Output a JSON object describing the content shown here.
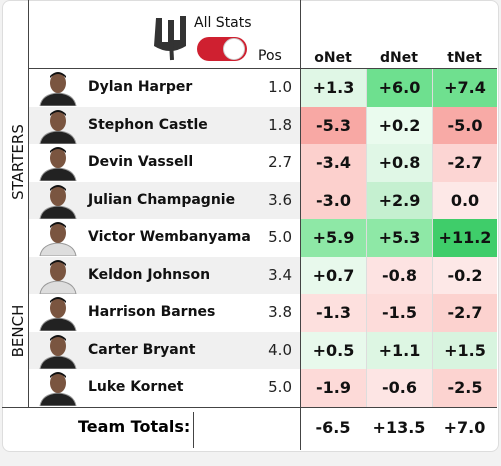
{
  "header": {
    "toggle_label": "All Stats",
    "pos": "Pos",
    "columns": [
      "oNet",
      "dNet",
      "tNet"
    ]
  },
  "groups": [
    {
      "label": "STARTERS",
      "rows": [
        {
          "name": "Dylan Harper",
          "pos": "1.0",
          "cells": [
            "+1.3",
            "+6.0",
            "+7.4"
          ],
          "colors": [
            "#e0f7e6",
            "#6ee08f",
            "#6fe08f"
          ]
        },
        {
          "name": "Stephon Castle",
          "pos": "1.8",
          "cells": [
            "-5.3",
            "+0.2",
            "-5.0"
          ],
          "colors": [
            "#f8a8a4",
            "#eafbee",
            "#f8aaa6"
          ]
        },
        {
          "name": "Devin Vassell",
          "pos": "2.7",
          "cells": [
            "-3.4",
            "+0.8",
            "-2.7"
          ],
          "colors": [
            "#fcd0cd",
            "#e0f7e6",
            "#fcd5d3"
          ]
        },
        {
          "name": "Julian Champagnie",
          "pos": "3.6",
          "cells": [
            "-3.0",
            "+2.9",
            "0.0"
          ],
          "colors": [
            "#fcd0cd",
            "#c5f0d0",
            "#fde8e7"
          ]
        },
        {
          "name": "Victor Wembanyama",
          "pos": "5.0",
          "cells": [
            "+5.9",
            "+5.3",
            "+11.2"
          ],
          "colors": [
            "#8ee8a6",
            "#8ee8a6",
            "#3fcd6a"
          ]
        }
      ]
    },
    {
      "label": "BENCH",
      "rows": [
        {
          "name": "Keldon Johnson",
          "pos": "3.4",
          "cells": [
            "+0.7",
            "-0.8",
            "-0.2"
          ],
          "colors": [
            "#e8f9ec",
            "#fde3e2",
            "#fde8e7"
          ]
        },
        {
          "name": "Harrison Barnes",
          "pos": "3.8",
          "cells": [
            "-1.3",
            "-1.5",
            "-2.7"
          ],
          "colors": [
            "#fde0de",
            "#fddcda",
            "#fcd2cf"
          ]
        },
        {
          "name": "Carter Bryant",
          "pos": "4.0",
          "cells": [
            "+0.5",
            "+1.1",
            "+1.5"
          ],
          "colors": [
            "#e8f9ec",
            "#ddf6e3",
            "#d8f4df"
          ]
        },
        {
          "name": "Luke Kornet",
          "pos": "5.0",
          "cells": [
            "-1.9",
            "-0.6",
            "-2.5"
          ],
          "colors": [
            "#fddad8",
            "#fde5e4",
            "#fcd3d0"
          ]
        }
      ]
    }
  ],
  "totals": {
    "label": "Team Totals:",
    "values": [
      "-6.5",
      "+13.5",
      "+7.0"
    ]
  }
}
